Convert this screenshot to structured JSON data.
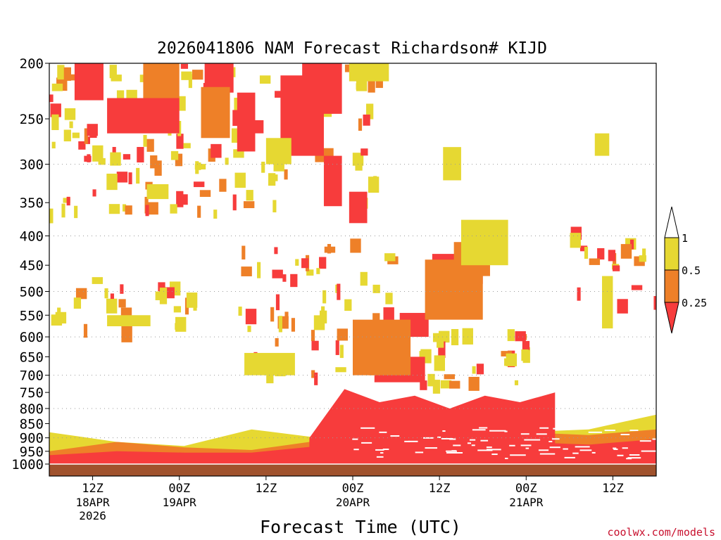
{
  "chart_data": {
    "type": "heatmap",
    "title": "2026041806 NAM Forecast Richardson# KIJD",
    "xlabel": "Forecast Time (UTC)",
    "ylabel": "",
    "credit": "coolwx.com/models",
    "y_axis": {
      "scale": "pressure",
      "range": [
        1000,
        200
      ],
      "ticks": [
        {
          "value": 200,
          "label": "200"
        },
        {
          "value": 250,
          "label": "250"
        },
        {
          "value": 300,
          "label": "300"
        },
        {
          "value": 350,
          "label": "350"
        },
        {
          "value": 400,
          "label": "400"
        },
        {
          "value": 450,
          "label": "450"
        },
        {
          "value": 500,
          "label": "500"
        },
        {
          "value": 550,
          "label": "550"
        },
        {
          "value": 600,
          "label": "600"
        },
        {
          "value": 650,
          "label": "650"
        },
        {
          "value": 700,
          "label": "700"
        },
        {
          "value": 750,
          "label": "750"
        },
        {
          "value": 800,
          "label": "800"
        },
        {
          "value": 850,
          "label": "850"
        },
        {
          "value": 900,
          "label": "900"
        },
        {
          "value": 950,
          "label": "950"
        },
        {
          "value": 1000,
          "label": "1000"
        }
      ],
      "gridlines_at": [
        300,
        400,
        500,
        600,
        700,
        800,
        900
      ]
    },
    "x_axis": {
      "range_hours": [
        0,
        84
      ],
      "ticks": [
        {
          "hour": 6,
          "label": "12Z",
          "sub": [
            "18APR",
            "2026"
          ]
        },
        {
          "hour": 18,
          "label": "00Z",
          "sub": [
            "19APR"
          ]
        },
        {
          "hour": 30,
          "label": "12Z",
          "sub": []
        },
        {
          "hour": 42,
          "label": "00Z",
          "sub": [
            "20APR"
          ]
        },
        {
          "hour": 54,
          "label": "12Z",
          "sub": []
        },
        {
          "hour": 66,
          "label": "00Z",
          "sub": [
            "21APR"
          ]
        },
        {
          "hour": 78,
          "label": "12Z",
          "sub": []
        }
      ]
    },
    "legend": {
      "position": "right",
      "colors": [
        "#ffffff",
        "#e6d832",
        "#ee8028",
        "#f73c3c"
      ],
      "labels": [
        "1",
        "0.5",
        "0.25"
      ]
    },
    "ground_color": "#a0522d",
    "ground_top_hpa": 1000,
    "regions": [
      {
        "class": "lt0.25",
        "h0": 3.5,
        "h1": 7.5,
        "p0": 200,
        "p1": 232
      },
      {
        "class": "lt0.25",
        "h0": 8,
        "h1": 18,
        "p0": 230,
        "p1": 265
      },
      {
        "class": "lt0.25",
        "h0": 21.5,
        "h1": 25.5,
        "p0": 200,
        "p1": 225
      },
      {
        "class": "lt0.25",
        "h0": 26,
        "h1": 28.5,
        "p0": 225,
        "p1": 285
      },
      {
        "class": "lt0.25",
        "h0": 32,
        "h1": 38,
        "p0": 210,
        "p1": 290
      },
      {
        "class": "lt0.25",
        "h0": 35,
        "h1": 40.5,
        "p0": 200,
        "p1": 245
      },
      {
        "class": "lt0.25",
        "h0": 38,
        "h1": 40.5,
        "p0": 290,
        "p1": 355
      },
      {
        "class": "lt0.25",
        "h0": 41.5,
        "h1": 44,
        "p0": 335,
        "p1": 380
      },
      {
        "class": "lt0.25",
        "h0": 53,
        "h1": 60,
        "p0": 430,
        "p1": 485
      },
      {
        "class": "lt0.25",
        "h0": 48.5,
        "h1": 52.5,
        "p0": 545,
        "p1": 600
      },
      {
        "class": "lt0.25",
        "h0": 45,
        "h1": 52,
        "p0": 650,
        "p1": 720
      },
      {
        "class": "0.25-0.5",
        "h0": 21,
        "h1": 25,
        "p0": 220,
        "p1": 270
      },
      {
        "class": "0.25-0.5",
        "h0": 13,
        "h1": 18,
        "p0": 200,
        "p1": 230
      },
      {
        "class": "0.25-0.5",
        "h0": 52,
        "h1": 60,
        "p0": 440,
        "p1": 560
      },
      {
        "class": "0.25-0.5",
        "h0": 56,
        "h1": 61,
        "p0": 410,
        "p1": 470
      },
      {
        "class": "0.25-0.5",
        "h0": 42,
        "h1": 50,
        "p0": 560,
        "p1": 700
      },
      {
        "class": "0.5-1",
        "h0": 54.5,
        "h1": 57,
        "p0": 280,
        "p1": 320
      },
      {
        "class": "0.5-1",
        "h0": 57,
        "h1": 63.5,
        "p0": 375,
        "p1": 450
      },
      {
        "class": "0.5-1",
        "h0": 41.5,
        "h1": 47,
        "p0": 200,
        "p1": 215
      },
      {
        "class": "0.5-1",
        "h0": 30,
        "h1": 33.5,
        "p0": 270,
        "p1": 300
      },
      {
        "class": "0.5-1",
        "h0": 13.5,
        "h1": 16.5,
        "p0": 325,
        "p1": 345
      },
      {
        "class": "0.5-1",
        "h0": 8,
        "h1": 14,
        "p0": 550,
        "p1": 575
      },
      {
        "class": "0.5-1",
        "h0": 27,
        "h1": 34,
        "p0": 640,
        "p1": 700
      },
      {
        "class": "0.5-1",
        "h0": 75.5,
        "h1": 77.5,
        "p0": 265,
        "p1": 290
      },
      {
        "class": "0.5-1",
        "h0": 76.5,
        "h1": 78,
        "p0": 470,
        "p1": 580
      }
    ],
    "low_level_bands": [
      {
        "class": "0.5-1",
        "h0": 0,
        "h1": 84,
        "p_top_hpa": [
          880,
          915,
          930,
          870,
          900,
          820,
          850,
          880,
          870,
          820
        ],
        "p_bottom_hpa": [
          960,
          960,
          965,
          965,
          960,
          960,
          955,
          960,
          960,
          955
        ]
      },
      {
        "class": "0.25-0.5",
        "h0": 0,
        "h1": 84,
        "p_top_hpa": [
          950,
          915,
          935,
          945,
          910,
          900,
          870,
          880,
          890,
          870
        ],
        "p_bottom_hpa": [
          975,
          975,
          980,
          975,
          975,
          975,
          970,
          980,
          975,
          975
        ]
      },
      {
        "class": "lt0.25",
        "h0": 0,
        "h1": 84,
        "p_top_hpa": [
          965,
          950,
          955,
          955,
          930,
          935,
          900,
          915,
          925,
          905
        ],
        "p_bottom_hpa": [
          1000,
          1000,
          1000,
          1000,
          1000,
          1000,
          1000,
          1000,
          1000,
          1000
        ]
      },
      {
        "class": "lt0.25",
        "h0": 36,
        "h1": 70,
        "p_top_hpa": [
          900,
          740,
          780,
          760,
          800,
          760,
          780,
          750
        ],
        "p_bottom_hpa": [
          960,
          950,
          940,
          960,
          955,
          960,
          960,
          960
        ]
      }
    ],
    "scattered_seed": 20260418
  }
}
